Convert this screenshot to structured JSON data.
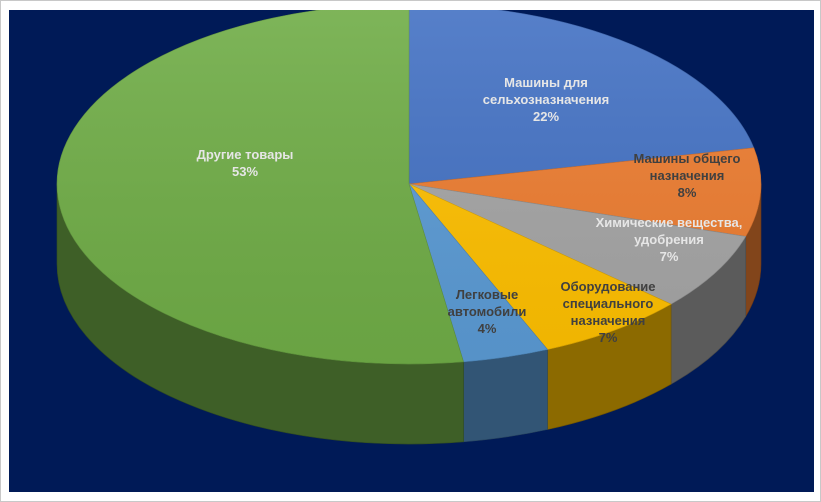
{
  "chart_data": {
    "type": "pie",
    "style": "3d",
    "background": "#001a57",
    "legend": "none",
    "slices": [
      {
        "lines": [
          "Машины для",
          "сельхозназначения"
        ],
        "percent_label": "22%",
        "value": 22,
        "color": "#4472c4",
        "label_color": "#e6e6e6"
      },
      {
        "lines": [
          "Машины общего",
          "назначения"
        ],
        "percent_label": "8%",
        "value": 8,
        "color": "#ed7d31",
        "label_color": "#404040"
      },
      {
        "lines": [
          "Химические вещества,",
          "удобрения"
        ],
        "percent_label": "7%",
        "value": 7,
        "color": "#a5a5a5",
        "label_color": "#e6e6e6"
      },
      {
        "lines": [
          "Оборудование",
          "специального",
          "назначения"
        ],
        "percent_label": "7%",
        "value": 7,
        "color": "#ffc000",
        "label_color": "#404040"
      },
      {
        "lines": [
          "Легковые",
          "автомобили"
        ],
        "percent_label": "4%",
        "value": 4,
        "color": "#5b9bd5",
        "label_color": "#404040"
      },
      {
        "lines": [
          "Другие товары"
        ],
        "percent_label": "53%",
        "value": 53,
        "color": "#70ad47",
        "label_color": "#e6e6e6"
      }
    ]
  }
}
